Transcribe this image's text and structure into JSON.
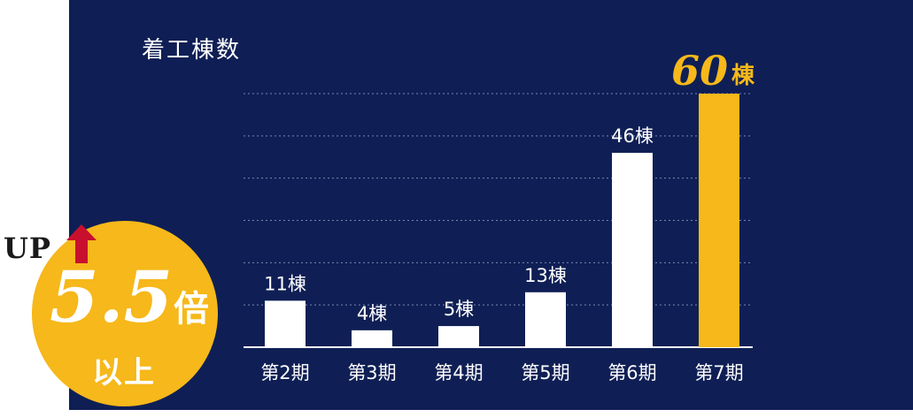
{
  "chart_data": {
    "type": "bar",
    "title": "着工棟数",
    "categories": [
      "第2期",
      "第3期",
      "第4期",
      "第5期",
      "第6期",
      "第7期"
    ],
    "values": [
      11,
      4,
      5,
      13,
      46,
      60
    ],
    "value_labels": [
      "11棟",
      "4棟",
      "5棟",
      "13棟",
      "46棟",
      "60"
    ],
    "highlight_unit": "棟",
    "ylim": [
      0,
      60
    ],
    "grid": true,
    "colors": {
      "bar": "#ffffff",
      "highlight": "#f6b81a",
      "grid": "#7a86ad",
      "axis": "#ffffff",
      "text": "#ffffff",
      "background": "#0f1f55"
    }
  },
  "badge": {
    "up": "UP",
    "multiplier": "5.5",
    "multiplier_unit": "倍",
    "suffix": "以上",
    "arrow_color": "#c8102e",
    "color": "#f6b81a"
  }
}
